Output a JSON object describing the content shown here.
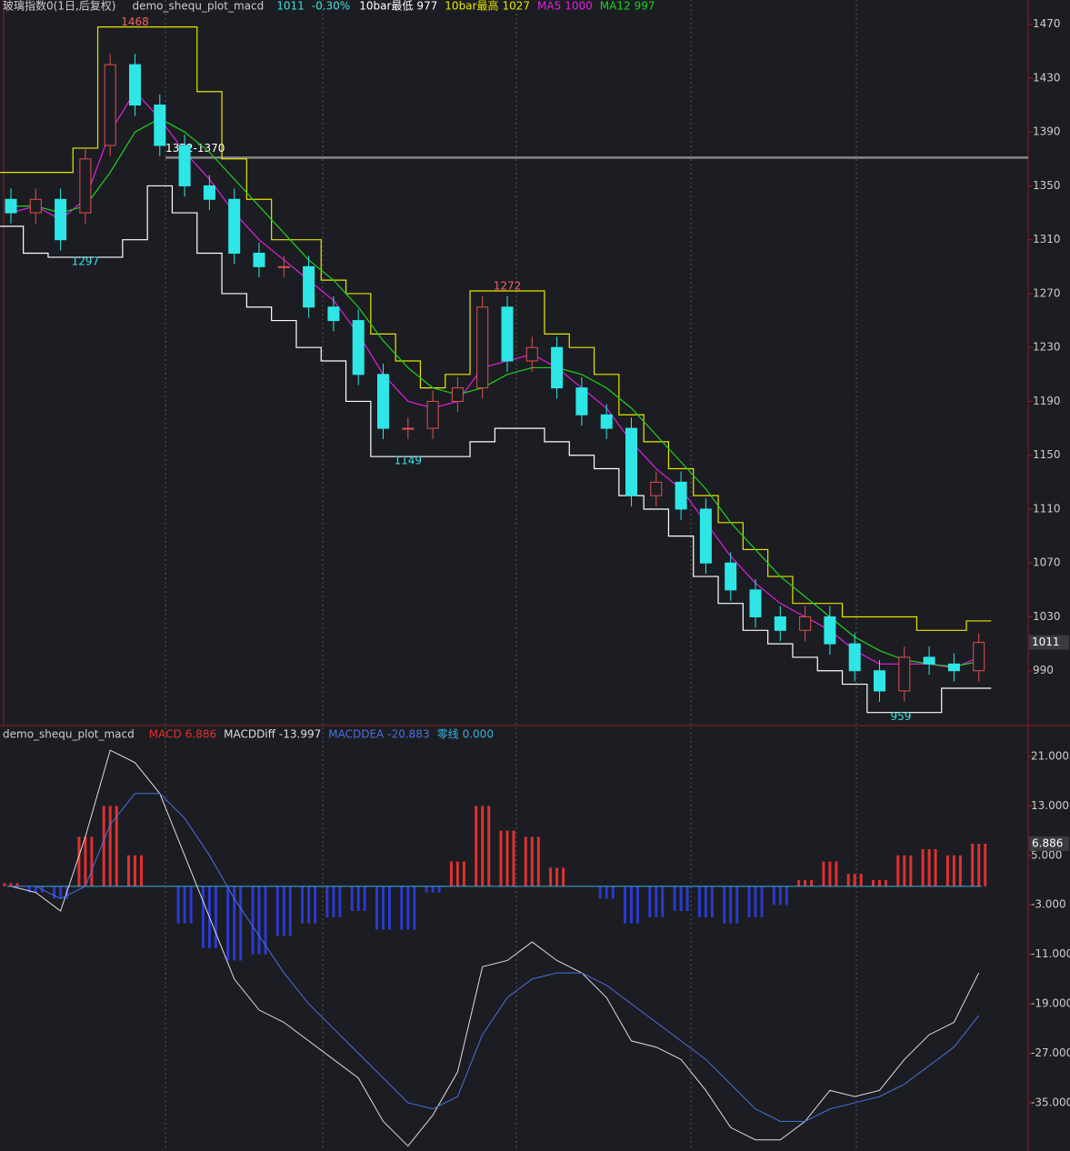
{
  "chart_data": [
    {
      "type": "candlestick",
      "title": "玻璃指数0(1日,后复权)",
      "indicator": "demo_shequ_plot_macd",
      "change": {
        "value": -0.3,
        "label": "-0.30%"
      },
      "open": [
        1340,
        1330,
        1340,
        1330,
        1380,
        1440,
        1410,
        1380,
        1350,
        1340,
        1300,
        1290,
        1290,
        1260,
        1250,
        1210,
        1170,
        1170,
        1190,
        1200,
        1260,
        1220,
        1230,
        1200,
        1180,
        1170,
        1120,
        1130,
        1110,
        1070,
        1050,
        1030,
        1020,
        1030,
        1010,
        990,
        975,
        1000,
        995,
        990
      ],
      "high": [
        1348,
        1348,
        1348,
        1378,
        1448,
        1448,
        1418,
        1388,
        1358,
        1348,
        1308,
        1298,
        1298,
        1268,
        1258,
        1218,
        1178,
        1198,
        1208,
        1268,
        1268,
        1238,
        1238,
        1208,
        1188,
        1178,
        1138,
        1138,
        1118,
        1078,
        1058,
        1038,
        1038,
        1038,
        1018,
        998,
        1008,
        1008,
        1003,
        1018
      ],
      "low": [
        1322,
        1322,
        1302,
        1322,
        1372,
        1402,
        1372,
        1342,
        1332,
        1292,
        1282,
        1282,
        1252,
        1242,
        1202,
        1162,
        1162,
        1162,
        1182,
        1192,
        1212,
        1212,
        1192,
        1172,
        1162,
        1112,
        1112,
        1102,
        1062,
        1042,
        1022,
        1012,
        1012,
        1002,
        982,
        967,
        967,
        987,
        982,
        982
      ],
      "close": [
        1330,
        1340,
        1310,
        1370,
        1440,
        1410,
        1380,
        1350,
        1340,
        1300,
        1290,
        1290,
        1260,
        1250,
        1210,
        1170,
        1170,
        1190,
        1200,
        1260,
        1220,
        1230,
        1200,
        1180,
        1170,
        1120,
        1130,
        1110,
        1070,
        1050,
        1030,
        1020,
        1030,
        1010,
        990,
        975,
        1000,
        995,
        990,
        1011
      ],
      "series": [
        {
          "name": "10bar最低",
          "color": "#ffffff",
          "values": [
            1320,
            1300,
            1297,
            1297,
            1297,
            1310,
            1350,
            1330,
            1300,
            1270,
            1260,
            1250,
            1230,
            1220,
            1190,
            1149,
            1149,
            1149,
            1149,
            1160,
            1170,
            1170,
            1160,
            1150,
            1140,
            1120,
            1110,
            1090,
            1060,
            1040,
            1020,
            1010,
            1000,
            990,
            980,
            959,
            959,
            959,
            977,
            977
          ]
        },
        {
          "name": "10bar最高",
          "color": "#e6e600",
          "values": [
            1360,
            1360,
            1360,
            1378,
            1468,
            1468,
            1468,
            1468,
            1420,
            1370,
            1340,
            1310,
            1310,
            1280,
            1270,
            1240,
            1220,
            1200,
            1210,
            1272,
            1272,
            1272,
            1240,
            1230,
            1210,
            1180,
            1160,
            1140,
            1120,
            1100,
            1080,
            1060,
            1040,
            1040,
            1030,
            1030,
            1030,
            1020,
            1020,
            1027
          ]
        },
        {
          "name": "MA5",
          "color": "#e020e0",
          "values": [
            1330,
            1335,
            1325,
            1340,
            1390,
            1420,
            1400,
            1375,
            1355,
            1330,
            1310,
            1295,
            1280,
            1265,
            1240,
            1210,
            1190,
            1185,
            1190,
            1215,
            1220,
            1225,
            1215,
            1200,
            1185,
            1160,
            1140,
            1125,
            1100,
            1075,
            1055,
            1040,
            1030,
            1020,
            1005,
            995,
            995,
            995,
            992,
            1000
          ]
        },
        {
          "name": "MA12",
          "color": "#20d020",
          "values": [
            1335,
            1335,
            1330,
            1335,
            1360,
            1390,
            1400,
            1390,
            1375,
            1355,
            1335,
            1315,
            1295,
            1280,
            1260,
            1235,
            1215,
            1200,
            1195,
            1200,
            1210,
            1215,
            1215,
            1210,
            1200,
            1185,
            1165,
            1145,
            1125,
            1100,
            1080,
            1060,
            1045,
            1030,
            1015,
            1005,
            998,
            995,
            993,
            997
          ]
        }
      ],
      "annotations": [
        1468,
        1297,
        1272,
        1149,
        959
      ],
      "hline": {
        "value": 1371,
        "label": "1372-1370"
      },
      "ylim": [
        950,
        1488
      ],
      "yticks": [
        990,
        1030,
        1070,
        1110,
        1150,
        1190,
        1230,
        1270,
        1310,
        1350,
        1390,
        1430,
        1470
      ]
    },
    {
      "type": "macd",
      "title": "demo_shequ_plot_macd",
      "series": [
        {
          "name": "MACD",
          "color": "#e03030",
          "values": [
            0.5,
            -1,
            -2,
            8,
            13,
            5,
            0,
            -6,
            -10,
            -12,
            -11,
            -8,
            -6,
            -5,
            -4,
            -7,
            -7,
            -1,
            4,
            13,
            9,
            8,
            3,
            0,
            -2,
            -6,
            -5,
            -4,
            -5,
            -6,
            -5,
            -3,
            1,
            4,
            2,
            1,
            5,
            6,
            5,
            6.886
          ]
        },
        {
          "name": "MACDDiff",
          "color": "#dddddd",
          "values": [
            0,
            -1,
            -4,
            8,
            22,
            20,
            15,
            5,
            -5,
            -15,
            -20,
            -22,
            -25,
            -28,
            -31,
            -38,
            -42,
            -37,
            -30,
            -13,
            -12,
            -9,
            -12,
            -14,
            -18,
            -25,
            -26,
            -28,
            -33,
            -39,
            -41,
            -41,
            -38,
            -33,
            -34,
            -33,
            -28,
            -24,
            -22,
            -13.997
          ]
        },
        {
          "name": "MACDDEA",
          "color": "#4a70e0",
          "values": [
            0,
            0,
            -2,
            0,
            10,
            15,
            15,
            11,
            5,
            -2,
            -8,
            -14,
            -19,
            -23,
            -27,
            -31,
            -35,
            -36,
            -34,
            -24,
            -18,
            -15,
            -14,
            -14,
            -16,
            -19,
            -22,
            -25,
            -28,
            -32,
            -36,
            -38,
            -38,
            -36,
            -35,
            -34,
            -32,
            -29,
            -26,
            -20.883
          ]
        }
      ],
      "zero": {
        "name": "零线",
        "value": 0,
        "label": "0.000",
        "color": "#3ab0e0"
      },
      "ylim": [
        -42.8,
        25.7
      ],
      "yticks": [
        {
          "value": 21,
          "label": "21.000"
        },
        {
          "value": 13,
          "label": "13.000"
        },
        {
          "value": 5,
          "label": "5.000"
        },
        {
          "value": -3,
          "label": "-3.000"
        },
        {
          "value": -11,
          "label": "-11.000"
        },
        {
          "value": -19,
          "label": "-19.000"
        },
        {
          "value": -27,
          "label": "-27.000"
        },
        {
          "value": -35,
          "label": "-35.000"
        }
      ]
    }
  ]
}
